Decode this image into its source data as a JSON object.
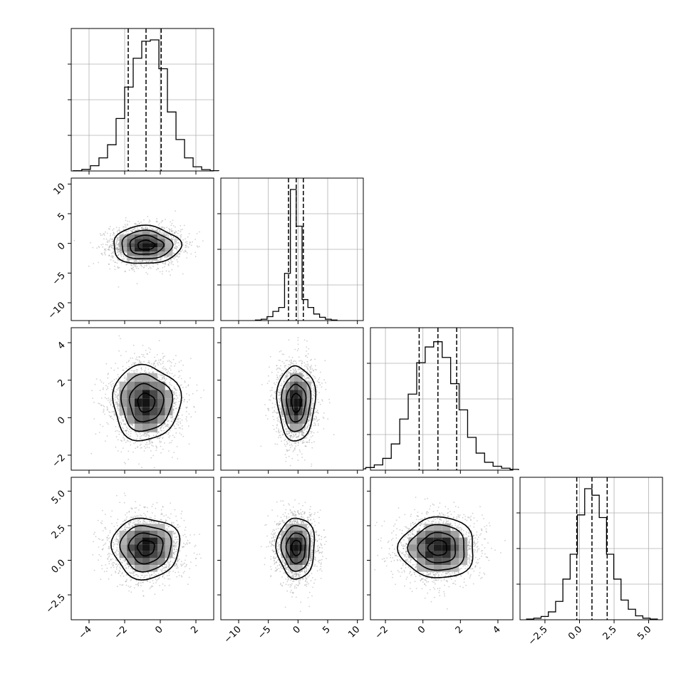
{
  "chart_data": {
    "type": "corner",
    "grid": true,
    "parameters": [
      {
        "range": [
          -5,
          3
        ],
        "ticks": [
          -4,
          -2,
          0,
          2
        ],
        "tick_labels": [
          "−4",
          "−2",
          "0",
          "2"
        ],
        "quantiles": [
          -1.8,
          -0.8,
          0.05
        ],
        "mean": -0.8,
        "sd": 0.95,
        "hist": [
          0.002,
          0.012,
          0.04,
          0.1,
          0.2,
          0.4,
          0.64,
          0.86,
          0.99,
          1.0,
          0.78,
          0.45,
          0.24,
          0.1,
          0.032,
          0.01,
          0.002
        ]
      },
      {
        "range": [
          -13,
          11
        ],
        "ticks": [
          -10,
          -5,
          0,
          5,
          10
        ],
        "tick_labels": [
          "−10",
          "−5",
          "0",
          "5",
          "10"
        ],
        "quantiles": [
          -1.6,
          -0.3,
          0.9
        ],
        "mean": -0.3,
        "sd": 1.6,
        "hist": [
          0.004,
          0.01,
          0.03,
          0.07,
          0.1,
          0.36,
          1.0,
          0.72,
          0.16,
          0.1,
          0.05,
          0.025,
          0.01,
          0.004
        ]
      },
      {
        "range": [
          -2.8,
          4.8
        ],
        "ticks": [
          -2,
          0,
          2,
          4
        ],
        "tick_labels": [
          "−2",
          "0",
          "2",
          "4"
        ],
        "quantiles": [
          -0.2,
          0.8,
          1.8
        ],
        "mean": 0.8,
        "sd": 1.0,
        "hist": [
          0.01,
          0.02,
          0.04,
          0.09,
          0.2,
          0.39,
          0.58,
          0.82,
          0.94,
          0.98,
          0.86,
          0.66,
          0.46,
          0.25,
          0.13,
          0.06,
          0.03,
          0.015,
          0.006
        ]
      },
      {
        "range": [
          -4.3,
          6.0
        ],
        "ticks": [
          -2.5,
          0,
          2.5,
          5.0
        ],
        "tick_labels": [
          "−2.5",
          "0.0",
          "2.5",
          "5.0"
        ],
        "quantiles": [
          -0.2,
          0.9,
          2.0
        ],
        "mean": 0.9,
        "sd": 1.1,
        "hist": [
          0.005,
          0.012,
          0.025,
          0.06,
          0.14,
          0.31,
          0.5,
          0.8,
          1.0,
          0.95,
          0.78,
          0.5,
          0.31,
          0.15,
          0.08,
          0.03,
          0.012,
          0.005
        ]
      }
    ],
    "pairs": [
      {
        "x": 0,
        "y": 1,
        "corr": 0.0
      },
      {
        "x": 0,
        "y": 2,
        "corr": 0.0
      },
      {
        "x": 1,
        "y": 2,
        "corr": 0.0
      },
      {
        "x": 0,
        "y": 3,
        "corr": 0.0
      },
      {
        "x": 1,
        "y": 3,
        "corr": 0.0
      },
      {
        "x": 2,
        "y": 3,
        "corr": 0.0
      }
    ],
    "contour_levels_sigma": [
      0.5,
      1.0,
      1.5,
      2.0
    ]
  }
}
